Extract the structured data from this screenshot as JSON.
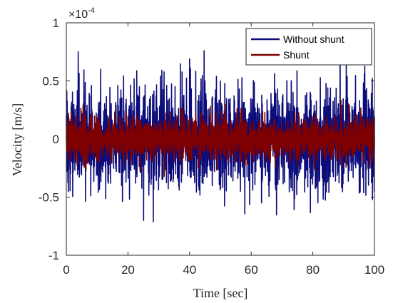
{
  "chart_data": {
    "type": "line",
    "title": "",
    "xlabel": "Time [sec]",
    "ylabel": "Velocity [m/s]",
    "xlim": [
      0,
      100
    ],
    "ylim": [
      -1,
      1
    ],
    "y_exponent_label": "×10",
    "y_exponent_power": "-4",
    "y_scale": 0.0001,
    "xticks": [
      0,
      20,
      40,
      60,
      80,
      100
    ],
    "xtick_labels": [
      "0",
      "20",
      "40",
      "60",
      "80",
      "100"
    ],
    "yticks": [
      -1,
      -0.5,
      0,
      0.5,
      1
    ],
    "ytick_labels": [
      "-1",
      "-0.5",
      "0",
      "0.5",
      "1"
    ],
    "grid": false,
    "legend_position": "top-right",
    "series": [
      {
        "name": "Without shunt",
        "color": "#0c0c7a",
        "signal": "broadband random vibration",
        "typical_envelope": 0.62,
        "peak_max": 0.92,
        "peak_min": -0.92,
        "x_start": 0,
        "x_end": 100
      },
      {
        "name": "Shunt",
        "color": "#7f0000",
        "signal": "broadband random vibration",
        "typical_envelope": 0.26,
        "peak_max": 0.46,
        "peak_min": -0.44,
        "x_start": 0,
        "x_end": 100
      }
    ]
  },
  "colors": {
    "axes": "#262626",
    "background": "#ffffff"
  }
}
